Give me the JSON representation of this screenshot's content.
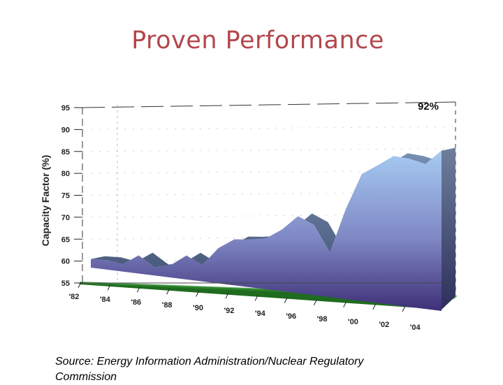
{
  "title": "Proven Performance",
  "annotation": "92%",
  "source": [
    "Source:  Energy Information Administration/Nuclear Regulatory",
    "Commission"
  ],
  "chart_data": {
    "type": "area",
    "title": "Proven Performance",
    "ylabel": "Capacity Factor (%)",
    "xlabel": "",
    "ylim": [
      55,
      95
    ],
    "y_ticks": [
      95,
      90,
      85,
      80,
      75,
      70,
      65,
      60,
      55
    ],
    "x_ticks": [
      "'82",
      "'84",
      "'86",
      "'88",
      "'90",
      "'92",
      "'94",
      "'96",
      "'98",
      "'00",
      "'02",
      "'04"
    ],
    "series": [
      {
        "x": [
          1982,
          1983,
          1984,
          1985,
          1986,
          1987,
          1988,
          1989,
          1990,
          1991,
          1992,
          1993,
          1994,
          1995,
          1996,
          1997,
          1998,
          1999,
          2000,
          2001,
          2002,
          2003,
          2004
        ],
        "values": [
          56.6,
          56.8,
          56.3,
          58.7,
          56.5,
          57.4,
          60.0,
          58.3,
          62.5,
          64.9,
          65.3,
          66.0,
          68.4,
          71.8,
          70.3,
          64.6,
          74.7,
          82.9,
          85.3,
          87.8,
          87.6,
          86.9,
          90.3
        ],
        "color": "#8fa9dc"
      }
    ],
    "area_color_top": "#a4c8f0",
    "area_color_bottom": "#46357c",
    "base_color": "#1f6b1f",
    "grid": true,
    "legend": "none"
  }
}
